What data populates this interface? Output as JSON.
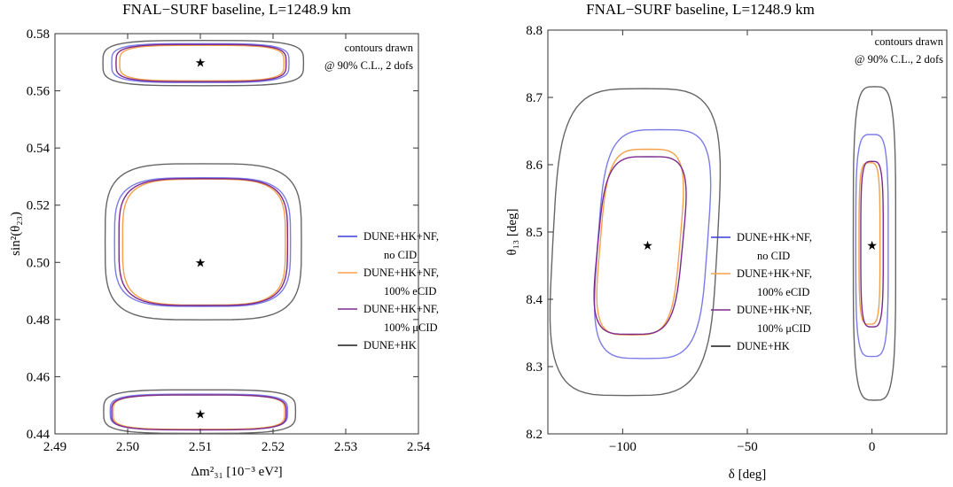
{
  "chart_data": [
    {
      "type": "line",
      "title": "FNAL−SURF baseline, L=1248.9 km",
      "xlabel": "Δm²₃₁ [10⁻³ eV²]",
      "ylabel": "sin²(θ₂₃)",
      "xlim": [
        2.49,
        2.54
      ],
      "ylim": [
        0.44,
        0.58
      ],
      "xticks": [
        2.49,
        2.5,
        2.51,
        2.52,
        2.53,
        2.54
      ],
      "xtick_labels": [
        "2.49",
        "2.50",
        "2.51",
        "2.52",
        "2.53",
        "2.54"
      ],
      "yticks": [
        0.44,
        0.46,
        0.48,
        0.5,
        0.52,
        0.54,
        0.56,
        0.58
      ],
      "ytick_labels": [
        "0.44",
        "0.46",
        "0.48",
        "0.50",
        "0.52",
        "0.54",
        "0.56",
        "0.58"
      ],
      "annotation_lines": [
        "contours drawn",
        "@ 90% C.L., 2 dofs"
      ],
      "best_fit_points": [
        {
          "x": 2.51,
          "y": 0.57
        },
        {
          "x": 2.51,
          "y": 0.5
        },
        {
          "x": 2.51,
          "y": 0.447
        }
      ],
      "legend": [
        {
          "line1": "DUNE+HK+NF,",
          "line2": "no CID",
          "color": "#3b3bd9"
        },
        {
          "line1": "DUNE+HK+NF,",
          "line2": "100% eCID",
          "color": "#f5a04a"
        },
        {
          "line1": "DUNE+HK+NF,",
          "line2": "100% μCID",
          "color": "#7b2a8e"
        },
        {
          "line1": "DUNE+HK",
          "line2": "",
          "color": "#1a1a1a"
        }
      ],
      "series": [
        {
          "name": "DUNE+HK+NF, no CID",
          "color": "#7b7bea",
          "contours": [
            {
              "cx": 2.51,
              "cy": 0.5697,
              "rx": 0.0122,
              "ry": 0.0068
            },
            {
              "cx": 2.5103,
              "cy": 0.5071,
              "rx": 0.0121,
              "ry": 0.0225
            },
            {
              "cx": 2.5098,
              "cy": 0.4477,
              "rx": 0.0122,
              "ry": 0.0062
            }
          ]
        },
        {
          "name": "DUNE+HK+NF, 100% eCID",
          "color": "#f5a04a",
          "contours": [
            {
              "cx": 2.5102,
              "cy": 0.5697,
              "rx": 0.0113,
              "ry": 0.0062
            },
            {
              "cx": 2.5105,
              "cy": 0.5071,
              "rx": 0.0112,
              "ry": 0.022
            },
            {
              "cx": 2.5098,
              "cy": 0.4476,
              "rx": 0.0118,
              "ry": 0.006
            }
          ]
        },
        {
          "name": "DUNE+HK+NF, 100% μCID",
          "color": "#7b2a8e",
          "contours": [
            {
              "cx": 2.5101,
              "cy": 0.5697,
              "rx": 0.0117,
              "ry": 0.0065
            },
            {
              "cx": 2.5104,
              "cy": 0.5071,
              "rx": 0.0116,
              "ry": 0.0222
            },
            {
              "cx": 2.5098,
              "cy": 0.4475,
              "rx": 0.012,
              "ry": 0.0061
            }
          ]
        },
        {
          "name": "DUNE+HK",
          "color": "#666666",
          "contours": [
            {
              "cx": 2.5104,
              "cy": 0.5697,
              "rx": 0.0138,
              "ry": 0.0079
            },
            {
              "cx": 2.5104,
              "cy": 0.5072,
              "rx": 0.0135,
              "ry": 0.0273
            },
            {
              "cx": 2.5099,
              "cy": 0.4478,
              "rx": 0.0132,
              "ry": 0.0076
            }
          ]
        }
      ]
    },
    {
      "type": "line",
      "title": "FNAL−SURF baseline, L=1248.9 km",
      "xlabel": "δ [deg]",
      "ylabel": "θ₁₃ [deg]",
      "xlim": [
        -130,
        30
      ],
      "ylim": [
        8.2,
        8.8
      ],
      "xticks": [
        -100,
        -50,
        0
      ],
      "xtick_labels": [
        "−100",
        "−50",
        "0"
      ],
      "yticks": [
        8.2,
        8.3,
        8.4,
        8.5,
        8.6,
        8.7,
        8.8
      ],
      "ytick_labels": [
        "8.2",
        "8.3",
        "8.4",
        "8.5",
        "8.6",
        "8.7",
        "8.8"
      ],
      "annotation_lines": [
        "contours drawn",
        "@ 90% C.L., 2 dofs"
      ],
      "best_fit_points": [
        {
          "x": -90,
          "y": 8.48
        },
        {
          "x": 0,
          "y": 8.48
        }
      ],
      "legend": [
        {
          "line1": "DUNE+HK+NF,",
          "line2": "no CID",
          "color": "#3b3bd9"
        },
        {
          "line1": "DUNE+HK+NF,",
          "line2": "100% eCID",
          "color": "#f5a04a"
        },
        {
          "line1": "DUNE+HK+NF,",
          "line2": "100% μCID",
          "color": "#7b2a8e"
        },
        {
          "line1": "DUNE+HK",
          "line2": "",
          "color": "#1a1a1a"
        }
      ],
      "series": [
        {
          "name": "DUNE+HK+NF, no CID",
          "color": "#7b7bea",
          "contours": [
            {
              "cx": -88,
              "cy": 8.482,
              "rx": 22,
              "ry": 0.17,
              "tilt": 0.15
            },
            {
              "cx": 0,
              "cy": 8.48,
              "rx": 6.5,
              "ry": 0.165
            }
          ]
        },
        {
          "name": "DUNE+HK+NF, 100% eCID",
          "color": "#f5a04a",
          "contours": [
            {
              "cx": -93,
              "cy": 8.485,
              "rx": 16,
              "ry": 0.138,
              "tilt": 0.2
            },
            {
              "cx": -1,
              "cy": 8.483,
              "rx": 4.2,
              "ry": 0.12
            }
          ]
        },
        {
          "name": "DUNE+HK+NF, 100% μCID",
          "color": "#7b2a8e",
          "contours": [
            {
              "cx": -93,
              "cy": 8.48,
              "rx": 17,
              "ry": 0.132,
              "tilt": 0.2
            },
            {
              "cx": 0,
              "cy": 8.482,
              "rx": 4.5,
              "ry": 0.123
            }
          ]
        },
        {
          "name": "DUNE+HK",
          "color": "#666666",
          "contours": [
            {
              "cx": -95,
              "cy": 8.485,
              "rx": 33,
              "ry": 0.228,
              "tilt": 0.1
            },
            {
              "cx": 1,
              "cy": 8.483,
              "rx": 8.5,
              "ry": 0.233
            }
          ]
        }
      ]
    }
  ]
}
